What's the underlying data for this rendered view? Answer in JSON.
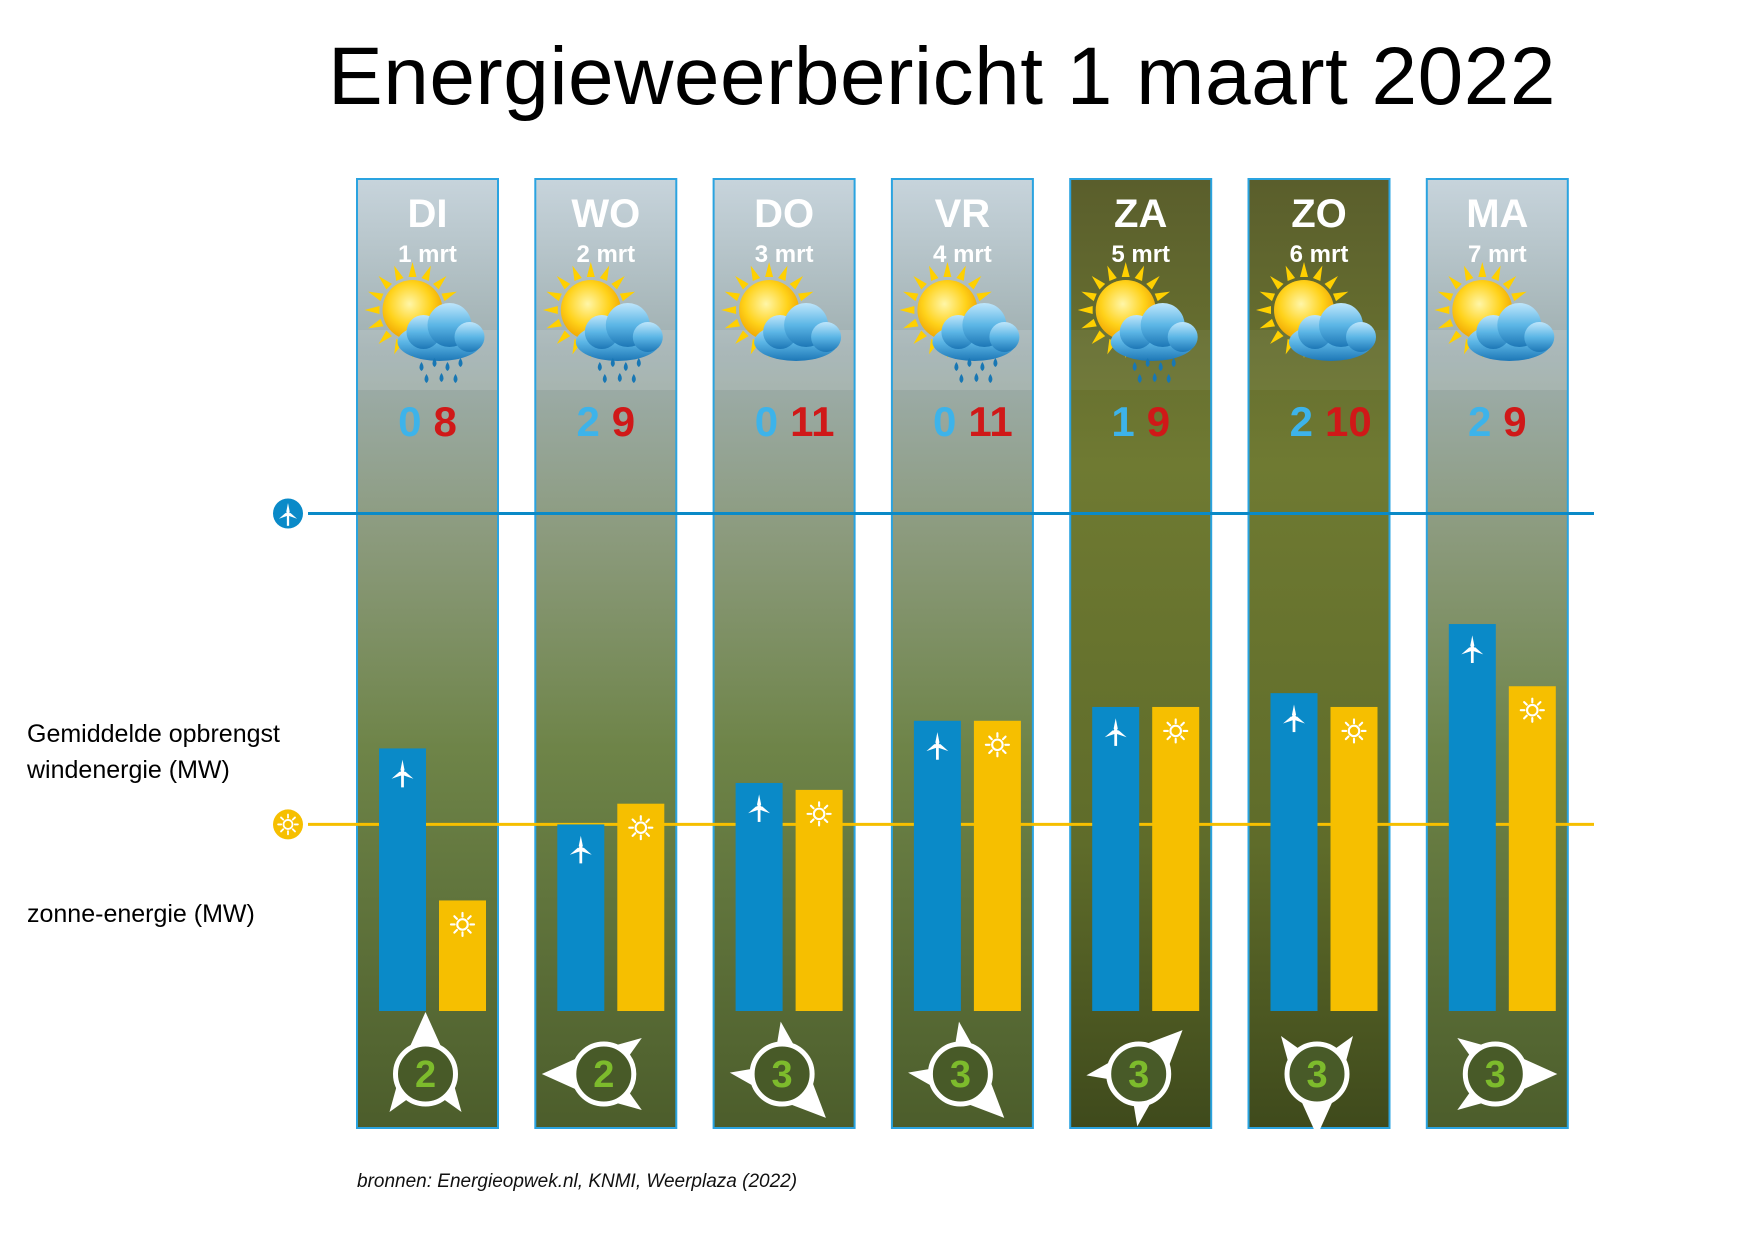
{
  "title": "Energieweerbericht 1 maart 2022",
  "legend": {
    "wind_label_line1": "Gemiddelde opbrengst",
    "wind_label_line2": "windenergie (MW)",
    "sun_label": "zonne-energie (MW)",
    "wind_color": "#0a8ac8",
    "sun_color": "#f6bf00",
    "wind_icon": "wind-turbine-icon",
    "sun_icon": "sun-icon"
  },
  "source": "bronnen: Energieopwek.nl, KNMI, Weerplaza (2022)",
  "colors": {
    "temp_min": "#3db3ea",
    "temp_max": "#d01818",
    "wind_force": "#7dbb2c"
  },
  "chart_data": {
    "type": "bar",
    "categories": [
      "DI",
      "WO",
      "DO",
      "VR",
      "ZA",
      "ZO",
      "MA"
    ],
    "dates": [
      "1 mrt",
      "2 mrt",
      "3 mrt",
      "4 mrt",
      "5 mrt",
      "6 mrt",
      "7 mrt"
    ],
    "weather_icons": [
      "sun-cloud-rain-icon",
      "sun-cloud-rain-icon",
      "sun-cloud-icon",
      "sun-cloud-rain-icon",
      "sun-cloud-rain-icon",
      "sun-cloud-icon",
      "sun-cloud-icon"
    ],
    "temp_min": [
      "0",
      "2",
      "0",
      "0",
      "1",
      "2",
      "2"
    ],
    "temp_max": [
      "8",
      "9",
      "11",
      "11",
      "9",
      "10",
      "9"
    ],
    "wind_force": [
      "2",
      "2",
      "3",
      "3",
      "3",
      "3",
      "3"
    ],
    "wind_direction_deg": [
      0,
      270,
      135,
      135,
      45,
      180,
      90
    ],
    "series": [
      {
        "values": [
          0.38,
          0.27,
          0.33,
          0.42,
          0.44,
          0.46,
          0.56
        ]
      },
      {
        "values": [
          0.16,
          0.3,
          0.32,
          0.42,
          0.44,
          0.44,
          0.47
        ]
      }
    ],
    "reference_lines": {
      "wind_average": 0.72,
      "sun_average": 0.27
    },
    "ylim": [
      0,
      1
    ],
    "weekend_days": [
      "ZA",
      "ZO"
    ]
  }
}
